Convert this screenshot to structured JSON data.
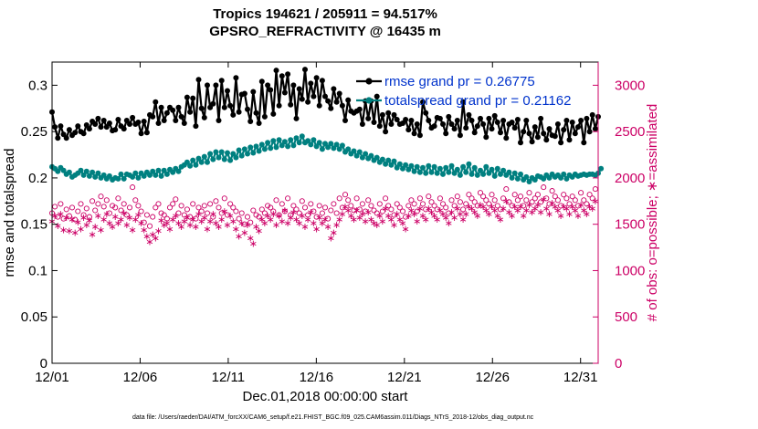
{
  "chart_data": {
    "type": "line",
    "title": "Tropics 194621 / 205911 = 94.517%",
    "subtitle": "GPSRO_REFRACTIVITY @ 16435 m",
    "xlabel": "Dec.01,2018 00:00:00 start",
    "ylabel_left": "rmse and totalspread",
    "ylabel_right": "# of obs: o=possible; ∗=assimilated",
    "footnote": "data file: /Users/raeder/DAI/ATM_forcXX/CAM6_setup/f.e21.FHIST_BGC.f09_025.CAM6assim.011/Diags_NTrS_2018-12/obs_diag_output.nc",
    "xlim": [
      0,
      31
    ],
    "ylim_left": [
      0,
      0.325
    ],
    "ylim_right": [
      0,
      3250
    ],
    "x_ticks": [
      0,
      5,
      10,
      15,
      20,
      25,
      30
    ],
    "x_tick_labels": [
      "12/01",
      "12/06",
      "12/11",
      "12/16",
      "12/21",
      "12/26",
      "12/31"
    ],
    "y_ticks_left": [
      0,
      0.05,
      0.1,
      0.15,
      0.2,
      0.25,
      0.3
    ],
    "y_tick_labels_left": [
      "0",
      "0.05",
      "0.1",
      "0.15",
      "0.2",
      "0.25",
      "0.3"
    ],
    "y_ticks_right": [
      0,
      500,
      1000,
      1500,
      2000,
      2500,
      3000
    ],
    "y_tick_labels_right": [
      "0",
      "500",
      "1000",
      "1500",
      "2000",
      "2500",
      "3000"
    ],
    "colors": {
      "rmse": "#000000",
      "spread": "#008080",
      "obs": "#cc0066",
      "legend_text": "#0033cc"
    },
    "legend": [
      {
        "name": "rmse grand pr = 0.26775",
        "series": "rmse"
      },
      {
        "name": "totalspread grand pr = 0.21162",
        "series": "spread"
      }
    ],
    "series": [
      {
        "name": "rmse",
        "axis": "left",
        "values": [
          0.271,
          0.255,
          0.243,
          0.256,
          0.247,
          0.243,
          0.252,
          0.246,
          0.249,
          0.256,
          0.25,
          0.248,
          0.257,
          0.253,
          0.261,
          0.258,
          0.264,
          0.255,
          0.262,
          0.255,
          0.259,
          0.251,
          0.252,
          0.263,
          0.256,
          0.253,
          0.262,
          0.258,
          0.265,
          0.258,
          0.26,
          0.248,
          0.261,
          0.249,
          0.268,
          0.266,
          0.282,
          0.259,
          0.276,
          0.262,
          0.27,
          0.276,
          0.273,
          0.262,
          0.276,
          0.266,
          0.259,
          0.287,
          0.271,
          0.286,
          0.256,
          0.306,
          0.275,
          0.265,
          0.3,
          0.276,
          0.28,
          0.3,
          0.262,
          0.305,
          0.276,
          0.294,
          0.278,
          0.268,
          0.308,
          0.271,
          0.29,
          0.291,
          0.274,
          0.261,
          0.293,
          0.27,
          0.259,
          0.304,
          0.266,
          0.3,
          0.295,
          0.269,
          0.316,
          0.278,
          0.31,
          0.292,
          0.312,
          0.279,
          0.3,
          0.264,
          0.296,
          0.285,
          0.317,
          0.282,
          0.302,
          0.288,
          0.308,
          0.278,
          0.305,
          0.288,
          0.283,
          0.275,
          0.296,
          0.282,
          0.291,
          0.278,
          0.262,
          0.284,
          0.272,
          0.27,
          0.272,
          0.274,
          0.258,
          0.283,
          0.264,
          0.283,
          0.26,
          0.288,
          0.256,
          0.268,
          0.25,
          0.27,
          0.258,
          0.268,
          0.263,
          0.258,
          0.259,
          0.263,
          0.252,
          0.262,
          0.248,
          0.258,
          0.246,
          0.282,
          0.27,
          0.262,
          0.254,
          0.256,
          0.265,
          0.264,
          0.258,
          0.248,
          0.266,
          0.258,
          0.253,
          0.262,
          0.246,
          0.282,
          0.254,
          0.268,
          0.262,
          0.249,
          0.256,
          0.264,
          0.258,
          0.244,
          0.264,
          0.253,
          0.267,
          0.26,
          0.249,
          0.262,
          0.243,
          0.258,
          0.26,
          0.254,
          0.263,
          0.238,
          0.25,
          0.262,
          0.248,
          0.239,
          0.255,
          0.244,
          0.264,
          0.248,
          0.241,
          0.253,
          0.246,
          0.245,
          0.258,
          0.238,
          0.252,
          0.262,
          0.241,
          0.26,
          0.248,
          0.255,
          0.262,
          0.238,
          0.264,
          0.25,
          0.268,
          0.253,
          0.266
        ]
      },
      {
        "name": "totalspread",
        "axis": "left",
        "values": [
          0.212,
          0.21,
          0.207,
          0.211,
          0.208,
          0.204,
          0.206,
          0.201,
          0.203,
          0.205,
          0.208,
          0.203,
          0.207,
          0.202,
          0.206,
          0.201,
          0.205,
          0.2,
          0.203,
          0.199,
          0.202,
          0.198,
          0.2,
          0.199,
          0.204,
          0.199,
          0.204,
          0.203,
          0.201,
          0.205,
          0.2,
          0.205,
          0.202,
          0.206,
          0.203,
          0.207,
          0.203,
          0.208,
          0.202,
          0.208,
          0.204,
          0.209,
          0.206,
          0.21,
          0.207,
          0.212,
          0.214,
          0.217,
          0.213,
          0.219,
          0.214,
          0.221,
          0.217,
          0.223,
          0.217,
          0.226,
          0.22,
          0.228,
          0.222,
          0.228,
          0.22,
          0.227,
          0.219,
          0.226,
          0.222,
          0.23,
          0.224,
          0.231,
          0.226,
          0.233,
          0.227,
          0.234,
          0.229,
          0.236,
          0.231,
          0.238,
          0.232,
          0.24,
          0.233,
          0.241,
          0.235,
          0.239,
          0.234,
          0.241,
          0.235,
          0.243,
          0.238,
          0.245,
          0.238,
          0.24,
          0.236,
          0.241,
          0.234,
          0.238,
          0.231,
          0.237,
          0.233,
          0.237,
          0.232,
          0.236,
          0.231,
          0.235,
          0.228,
          0.231,
          0.226,
          0.229,
          0.224,
          0.228,
          0.222,
          0.226,
          0.221,
          0.224,
          0.219,
          0.222,
          0.217,
          0.22,
          0.215,
          0.219,
          0.214,
          0.218,
          0.211,
          0.215,
          0.21,
          0.214,
          0.209,
          0.213,
          0.207,
          0.212,
          0.206,
          0.211,
          0.205,
          0.213,
          0.206,
          0.212,
          0.205,
          0.21,
          0.204,
          0.211,
          0.206,
          0.213,
          0.205,
          0.209,
          0.203,
          0.212,
          0.206,
          0.215,
          0.204,
          0.211,
          0.203,
          0.208,
          0.204,
          0.212,
          0.205,
          0.209,
          0.202,
          0.21,
          0.204,
          0.208,
          0.203,
          0.206,
          0.2,
          0.205,
          0.199,
          0.204,
          0.198,
          0.201,
          0.196,
          0.2,
          0.198,
          0.202,
          0.201,
          0.199,
          0.203,
          0.2,
          0.204,
          0.201,
          0.203,
          0.2,
          0.204,
          0.199,
          0.203,
          0.201,
          0.204,
          0.202,
          0.203,
          0.204,
          0.203,
          0.204,
          0.204,
          0.203,
          0.205,
          0.21
        ]
      },
      {
        "name": "possible",
        "axis": "right",
        "marker": "o",
        "values": [
          1620,
          1690,
          1580,
          1720,
          1560,
          1660,
          1590,
          1680,
          1550,
          1640,
          1720,
          1600,
          1670,
          1580,
          1750,
          1650,
          1720,
          1800,
          1690,
          1760,
          1620,
          1700,
          1680,
          1780,
          1650,
          1720,
          1600,
          1680,
          1900,
          1760,
          1700,
          1640,
          1520,
          1600,
          1480,
          1580,
          1680,
          1720,
          1620,
          1600,
          1560,
          1680,
          1720,
          1770,
          1620,
          1700,
          1600,
          1660,
          1580,
          1720,
          1560,
          1680,
          1640,
          1700,
          1620,
          1720,
          1580,
          1750,
          1680,
          1620,
          1780,
          1600,
          1720,
          1680,
          1640,
          1560,
          1620,
          1500,
          1580,
          1520,
          1650,
          1600,
          1580,
          1660,
          1620,
          1700,
          1680,
          1640,
          1760,
          1600,
          1720,
          1640,
          1780,
          1600,
          1700,
          1660,
          1620,
          1750,
          1680,
          1600,
          1720,
          1640,
          1580,
          1700,
          1620,
          1680,
          1560,
          1650,
          1720,
          1620,
          1780,
          1680,
          1820,
          1760,
          1700,
          1650,
          1780,
          1660,
          1720,
          1640,
          1760,
          1700,
          1650,
          1620,
          1720,
          1640,
          1780,
          1700,
          1660,
          1600,
          1720,
          1680,
          1640,
          1580,
          1700,
          1760,
          1720,
          1640,
          1780,
          1720,
          1660,
          1800,
          1740,
          1700,
          1660,
          1780,
          1720,
          1680,
          1620,
          1760,
          1700,
          1800,
          1740,
          1660,
          1720,
          1820,
          1780,
          1740,
          1700,
          1840,
          1800,
          1760,
          1720,
          1820,
          1760,
          1700,
          1660,
          1780,
          1880,
          1740,
          1700,
          1820,
          1760,
          1800,
          1700,
          1760,
          1840,
          1740,
          1780,
          1820,
          1740,
          1900,
          1780,
          1720,
          1860,
          1800,
          1760,
          1700,
          1820,
          1780,
          1720,
          1800,
          1760,
          1700,
          1840,
          1760,
          1720,
          1820,
          1780,
          1880
        ]
      },
      {
        "name": "assimilated",
        "axis": "right",
        "marker": "*",
        "values": [
          1540,
          1600,
          1490,
          1620,
          1450,
          1580,
          1440,
          1560,
          1420,
          1530,
          1460,
          1580,
          1500,
          1550,
          1400,
          1480,
          1600,
          1450,
          1560,
          1620,
          1520,
          1480,
          1590,
          1520,
          1560,
          1630,
          1500,
          1580,
          1450,
          1560,
          1610,
          1520,
          1450,
          1380,
          1320,
          1400,
          1360,
          1440,
          1550,
          1500,
          1520,
          1460,
          1560,
          1600,
          1520,
          1480,
          1540,
          1580,
          1500,
          1560,
          1480,
          1620,
          1540,
          1580,
          1460,
          1540,
          1620,
          1520,
          1480,
          1560,
          1650,
          1500,
          1600,
          1540,
          1460,
          1380,
          1520,
          1420,
          1500,
          1360,
          1300,
          1480,
          1440,
          1560,
          1520,
          1600,
          1560,
          1620,
          1500,
          1600,
          1540,
          1660,
          1520,
          1580,
          1640,
          1560,
          1520,
          1600,
          1480,
          1560,
          1640,
          1520,
          1460,
          1580,
          1520,
          1560,
          1480,
          1360,
          1420,
          1500,
          1560,
          1620,
          1700,
          1660,
          1600,
          1560,
          1660,
          1580,
          1620,
          1540,
          1640,
          1560,
          1520,
          1500,
          1600,
          1540,
          1680,
          1600,
          1560,
          1500,
          1620,
          1560,
          1520,
          1460,
          1600,
          1660,
          1620,
          1540,
          1680,
          1600,
          1560,
          1680,
          1640,
          1600,
          1560,
          1660,
          1620,
          1580,
          1520,
          1640,
          1580,
          1680,
          1620,
          1560,
          1620,
          1700,
          1680,
          1640,
          1600,
          1720,
          1700,
          1660,
          1620,
          1700,
          1660,
          1600,
          1560,
          1680,
          1760,
          1640,
          1600,
          1700,
          1660,
          1700,
          1600,
          1660,
          1720,
          1640,
          1680,
          1720,
          1640,
          1780,
          1680,
          1620,
          1740,
          1700,
          1660,
          1600,
          1700,
          1680,
          1620,
          1700,
          1660,
          1600,
          1720,
          1660,
          1620,
          1700,
          1680,
          1760
        ]
      }
    ]
  }
}
